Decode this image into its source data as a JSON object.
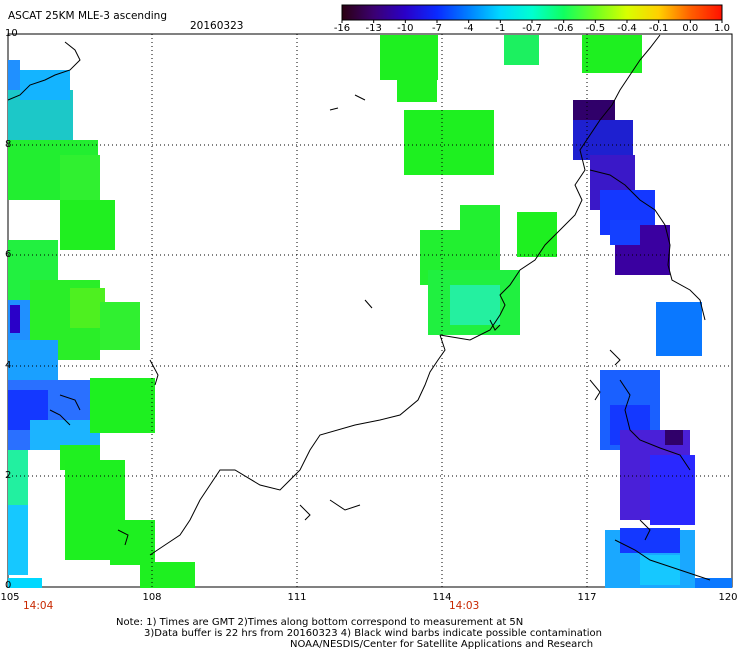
{
  "header": {
    "title": "ASCAT 25KM MLE-3 ascending",
    "date": "20160323"
  },
  "colorbar": {
    "labels": [
      "-16",
      "-13",
      "-10",
      "-7",
      "-4",
      "-1",
      "-0.7",
      "-0.6",
      "-0.5",
      "-0.4",
      "-0.1",
      "0.0",
      "1.0"
    ],
    "colors": [
      "#2a0010",
      "#3b0071",
      "#2a00c8",
      "#0a2aff",
      "#0080ff",
      "#00d8ff",
      "#00ffd0",
      "#10ff60",
      "#70ff20",
      "#d8ff00",
      "#ffd000",
      "#ff6000",
      "#ff1000"
    ]
  },
  "axes": {
    "lat_labels": [
      "10",
      "8",
      "6",
      "4",
      "2",
      "0"
    ],
    "lon_labels": [
      "105",
      "108",
      "111",
      "114",
      "117",
      "120"
    ]
  },
  "times": {
    "left": "14:04",
    "center": "14:03"
  },
  "notes": {
    "line1": "Note: 1) Times are GMT 2)Times along bottom correspond to measurement at 5N",
    "line2": "3)Data buffer is 22 hrs from 20160323 4) Black wind barbs indicate possible contamination",
    "line3": "NOAA/NESDIS/Center for Satellite Applications and Research"
  },
  "palette": {
    "green": "#1ef020",
    "darkpurple": "#30006a",
    "blue": "#1438ff",
    "lightblue": "#0a78ff",
    "cyan": "#00d8ff"
  }
}
